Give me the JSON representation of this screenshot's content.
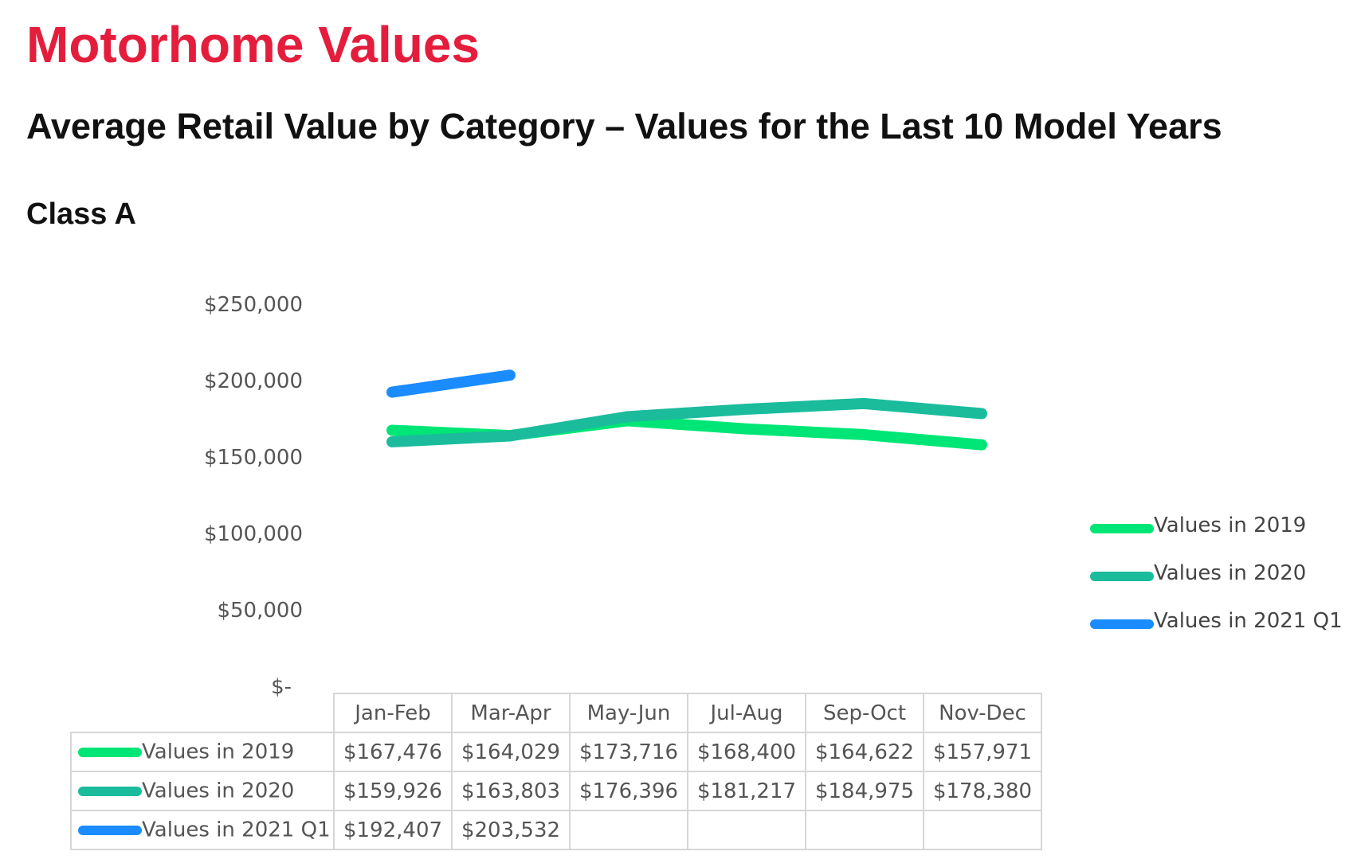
{
  "header": {
    "title": "Motorhome Values",
    "subtitle": "Average Retail Value by Category – Values for the Last 10 Model Years",
    "section": "Class A"
  },
  "chart_data": {
    "type": "line",
    "title": "",
    "xlabel": "",
    "ylabel": "",
    "categories": [
      "Jan-Feb",
      "Mar-Apr",
      "May-Jun",
      "Jul-Aug",
      "Sep-Oct",
      "Nov-Dec"
    ],
    "y_ticks": [
      "$250,000",
      "$200,000",
      "$150,000",
      "$100,000",
      "$50,000",
      "$-"
    ],
    "ylim": [
      0,
      250000
    ],
    "legend_position": "right",
    "series": [
      {
        "name": "Values in 2019",
        "color": "#00e676",
        "values": [
          167476,
          164029,
          173716,
          168400,
          164622,
          157971
        ],
        "labels": [
          "$167,476",
          "$164,029",
          "$173,716",
          "$168,400",
          "$164,622",
          "$157,971"
        ]
      },
      {
        "name": "Values in 2020",
        "color": "#1abc9c",
        "values": [
          159926,
          163803,
          176396,
          181217,
          184975,
          178380
        ],
        "labels": [
          "$159,926",
          "$163,803",
          "$176,396",
          "$181,217",
          "$184,975",
          "$178,380"
        ]
      },
      {
        "name": "Values in 2021 Q1",
        "color": "#1a8cff",
        "values": [
          192407,
          203532,
          null,
          null,
          null,
          null
        ],
        "labels": [
          "$192,407",
          "$203,532",
          "",
          "",
          "",
          ""
        ]
      }
    ]
  }
}
